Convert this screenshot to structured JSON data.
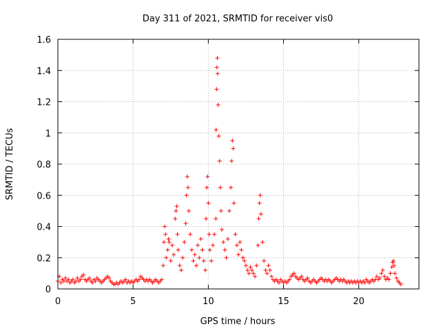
{
  "chart_data": {
    "type": "scatter",
    "title": "Day 311 of 2021, SRMTID for receiver vis0",
    "xlabel": "GPS time / hours",
    "ylabel": "SRMTID / TECUs",
    "xlim": [
      0,
      24
    ],
    "ylim": [
      0,
      1.6
    ],
    "xticks": [
      0,
      5,
      10,
      15,
      20
    ],
    "xtick_labels": [
      "0",
      "5",
      "10",
      "15",
      "20"
    ],
    "yticks": [
      0,
      0.2,
      0.4,
      0.6,
      0.8,
      1.0,
      1.2,
      1.4,
      1.6
    ],
    "ytick_labels": [
      "0",
      "0.2",
      "0.4",
      "0.6",
      "0.8",
      "1",
      "1.2",
      "1.4",
      "1.6"
    ],
    "grid": true,
    "marker": "+",
    "color": "#ff0000",
    "series": [
      {
        "name": "vis0",
        "points": [
          [
            0.0,
            0.05
          ],
          [
            0.1,
            0.08
          ],
          [
            0.2,
            0.04
          ],
          [
            0.3,
            0.06
          ],
          [
            0.4,
            0.05
          ],
          [
            0.5,
            0.07
          ],
          [
            0.6,
            0.05
          ],
          [
            0.7,
            0.06
          ],
          [
            0.8,
            0.04
          ],
          [
            0.9,
            0.05
          ],
          [
            1.0,
            0.06
          ],
          [
            1.1,
            0.04
          ],
          [
            1.2,
            0.05
          ],
          [
            1.3,
            0.07
          ],
          [
            1.4,
            0.05
          ],
          [
            1.5,
            0.06
          ],
          [
            1.6,
            0.08
          ],
          [
            1.7,
            0.09
          ],
          [
            1.8,
            0.06
          ],
          [
            1.9,
            0.05
          ],
          [
            2.0,
            0.06
          ],
          [
            2.1,
            0.07
          ],
          [
            2.2,
            0.05
          ],
          [
            2.3,
            0.04
          ],
          [
            2.4,
            0.06
          ],
          [
            2.5,
            0.05
          ],
          [
            2.6,
            0.07
          ],
          [
            2.7,
            0.06
          ],
          [
            2.8,
            0.05
          ],
          [
            2.9,
            0.04
          ],
          [
            3.0,
            0.05
          ],
          [
            3.1,
            0.06
          ],
          [
            3.2,
            0.07
          ],
          [
            3.3,
            0.08
          ],
          [
            3.4,
            0.07
          ],
          [
            3.5,
            0.05
          ],
          [
            3.6,
            0.04
          ],
          [
            3.7,
            0.03
          ],
          [
            3.8,
            0.03
          ],
          [
            3.9,
            0.04
          ],
          [
            4.0,
            0.03
          ],
          [
            4.1,
            0.04
          ],
          [
            4.2,
            0.05
          ],
          [
            4.3,
            0.04
          ],
          [
            4.4,
            0.05
          ],
          [
            4.5,
            0.06
          ],
          [
            4.6,
            0.04
          ],
          [
            4.7,
            0.05
          ],
          [
            4.8,
            0.04
          ],
          [
            4.9,
            0.05
          ],
          [
            5.0,
            0.04
          ],
          [
            5.1,
            0.05
          ],
          [
            5.2,
            0.06
          ],
          [
            5.3,
            0.05
          ],
          [
            5.4,
            0.06
          ],
          [
            5.5,
            0.08
          ],
          [
            5.6,
            0.07
          ],
          [
            5.7,
            0.06
          ],
          [
            5.8,
            0.05
          ],
          [
            5.9,
            0.06
          ],
          [
            6.0,
            0.05
          ],
          [
            6.1,
            0.06
          ],
          [
            6.2,
            0.05
          ],
          [
            6.3,
            0.04
          ],
          [
            6.4,
            0.05
          ],
          [
            6.5,
            0.06
          ],
          [
            6.6,
            0.05
          ],
          [
            6.7,
            0.04
          ],
          [
            6.8,
            0.05
          ],
          [
            6.9,
            0.06
          ],
          [
            7.0,
            0.15
          ],
          [
            7.05,
            0.3
          ],
          [
            7.1,
            0.4
          ],
          [
            7.15,
            0.35
          ],
          [
            7.2,
            0.2
          ],
          [
            7.3,
            0.25
          ],
          [
            7.35,
            0.32
          ],
          [
            7.4,
            0.3
          ],
          [
            7.5,
            0.18
          ],
          [
            7.6,
            0.28
          ],
          [
            7.7,
            0.22
          ],
          [
            7.8,
            0.45
          ],
          [
            7.85,
            0.5
          ],
          [
            7.9,
            0.53
          ],
          [
            7.95,
            0.35
          ],
          [
            8.0,
            0.25
          ],
          [
            8.1,
            0.15
          ],
          [
            8.2,
            0.12
          ],
          [
            8.3,
            0.2
          ],
          [
            8.4,
            0.3
          ],
          [
            8.5,
            0.42
          ],
          [
            8.55,
            0.6
          ],
          [
            8.6,
            0.72
          ],
          [
            8.65,
            0.65
          ],
          [
            8.7,
            0.5
          ],
          [
            8.8,
            0.35
          ],
          [
            8.9,
            0.25
          ],
          [
            9.0,
            0.18
          ],
          [
            9.1,
            0.22
          ],
          [
            9.2,
            0.15
          ],
          [
            9.3,
            0.28
          ],
          [
            9.4,
            0.2
          ],
          [
            9.5,
            0.32
          ],
          [
            9.6,
            0.25
          ],
          [
            9.7,
            0.18
          ],
          [
            9.8,
            0.12
          ],
          [
            9.85,
            0.45
          ],
          [
            9.9,
            0.65
          ],
          [
            9.95,
            0.72
          ],
          [
            10.0,
            0.55
          ],
          [
            10.05,
            0.35
          ],
          [
            10.1,
            0.25
          ],
          [
            10.2,
            0.18
          ],
          [
            10.3,
            0.28
          ],
          [
            10.4,
            0.35
          ],
          [
            10.5,
            0.45
          ],
          [
            10.52,
            1.02
          ],
          [
            10.55,
            1.28
          ],
          [
            10.57,
            1.42
          ],
          [
            10.6,
            1.48
          ],
          [
            10.62,
            1.38
          ],
          [
            10.65,
            1.18
          ],
          [
            10.7,
            0.98
          ],
          [
            10.75,
            0.82
          ],
          [
            10.8,
            0.65
          ],
          [
            10.85,
            0.5
          ],
          [
            10.9,
            0.38
          ],
          [
            11.0,
            0.3
          ],
          [
            11.1,
            0.25
          ],
          [
            11.2,
            0.2
          ],
          [
            11.3,
            0.32
          ],
          [
            11.4,
            0.5
          ],
          [
            11.5,
            0.65
          ],
          [
            11.55,
            0.82
          ],
          [
            11.6,
            0.95
          ],
          [
            11.65,
            0.9
          ],
          [
            11.7,
            0.55
          ],
          [
            11.8,
            0.35
          ],
          [
            11.9,
            0.28
          ],
          [
            12.0,
            0.22
          ],
          [
            12.1,
            0.3
          ],
          [
            12.2,
            0.25
          ],
          [
            12.3,
            0.2
          ],
          [
            12.4,
            0.18
          ],
          [
            12.5,
            0.15
          ],
          [
            12.6,
            0.12
          ],
          [
            12.7,
            0.1
          ],
          [
            12.8,
            0.14
          ],
          [
            12.9,
            0.12
          ],
          [
            13.0,
            0.1
          ],
          [
            13.1,
            0.08
          ],
          [
            13.2,
            0.15
          ],
          [
            13.3,
            0.28
          ],
          [
            13.35,
            0.45
          ],
          [
            13.4,
            0.55
          ],
          [
            13.45,
            0.6
          ],
          [
            13.5,
            0.48
          ],
          [
            13.6,
            0.3
          ],
          [
            13.7,
            0.18
          ],
          [
            13.8,
            0.12
          ],
          [
            13.9,
            0.1
          ],
          [
            14.0,
            0.15
          ],
          [
            14.1,
            0.12
          ],
          [
            14.2,
            0.08
          ],
          [
            14.3,
            0.06
          ],
          [
            14.4,
            0.05
          ],
          [
            14.5,
            0.06
          ],
          [
            14.6,
            0.05
          ],
          [
            14.7,
            0.04
          ],
          [
            14.8,
            0.06
          ],
          [
            14.9,
            0.05
          ],
          [
            15.0,
            0.04
          ],
          [
            15.1,
            0.05
          ],
          [
            15.2,
            0.04
          ],
          [
            15.3,
            0.05
          ],
          [
            15.4,
            0.06
          ],
          [
            15.5,
            0.08
          ],
          [
            15.6,
            0.09
          ],
          [
            15.7,
            0.1
          ],
          [
            15.8,
            0.08
          ],
          [
            15.9,
            0.07
          ],
          [
            16.0,
            0.06
          ],
          [
            16.1,
            0.07
          ],
          [
            16.2,
            0.08
          ],
          [
            16.3,
            0.06
          ],
          [
            16.4,
            0.05
          ],
          [
            16.5,
            0.06
          ],
          [
            16.6,
            0.07
          ],
          [
            16.7,
            0.05
          ],
          [
            16.8,
            0.04
          ],
          [
            16.9,
            0.05
          ],
          [
            17.0,
            0.06
          ],
          [
            17.1,
            0.05
          ],
          [
            17.2,
            0.04
          ],
          [
            17.3,
            0.05
          ],
          [
            17.4,
            0.06
          ],
          [
            17.5,
            0.07
          ],
          [
            17.6,
            0.06
          ],
          [
            17.7,
            0.05
          ],
          [
            17.8,
            0.06
          ],
          [
            17.9,
            0.05
          ],
          [
            18.0,
            0.06
          ],
          [
            18.1,
            0.05
          ],
          [
            18.2,
            0.04
          ],
          [
            18.3,
            0.05
          ],
          [
            18.4,
            0.06
          ],
          [
            18.5,
            0.07
          ],
          [
            18.6,
            0.06
          ],
          [
            18.7,
            0.05
          ],
          [
            18.8,
            0.06
          ],
          [
            18.9,
            0.05
          ],
          [
            19.0,
            0.06
          ],
          [
            19.1,
            0.05
          ],
          [
            19.2,
            0.04
          ],
          [
            19.3,
            0.05
          ],
          [
            19.4,
            0.04
          ],
          [
            19.5,
            0.05
          ],
          [
            19.6,
            0.04
          ],
          [
            19.7,
            0.05
          ],
          [
            19.8,
            0.04
          ],
          [
            19.9,
            0.05
          ],
          [
            20.0,
            0.04
          ],
          [
            20.1,
            0.05
          ],
          [
            20.2,
            0.04
          ],
          [
            20.3,
            0.05
          ],
          [
            20.4,
            0.04
          ],
          [
            20.5,
            0.06
          ],
          [
            20.6,
            0.05
          ],
          [
            20.7,
            0.04
          ],
          [
            20.8,
            0.05
          ],
          [
            20.9,
            0.06
          ],
          [
            21.0,
            0.05
          ],
          [
            21.1,
            0.06
          ],
          [
            21.2,
            0.08
          ],
          [
            21.3,
            0.06
          ],
          [
            21.4,
            0.07
          ],
          [
            21.5,
            0.1
          ],
          [
            21.6,
            0.12
          ],
          [
            21.7,
            0.08
          ],
          [
            21.8,
            0.06
          ],
          [
            21.9,
            0.07
          ],
          [
            22.0,
            0.06
          ],
          [
            22.1,
            0.1
          ],
          [
            22.2,
            0.14
          ],
          [
            22.25,
            0.17
          ],
          [
            22.3,
            0.18
          ],
          [
            22.35,
            0.15
          ],
          [
            22.4,
            0.1
          ],
          [
            22.5,
            0.07
          ],
          [
            22.6,
            0.05
          ],
          [
            22.7,
            0.04
          ],
          [
            22.8,
            0.03
          ]
        ]
      }
    ]
  }
}
